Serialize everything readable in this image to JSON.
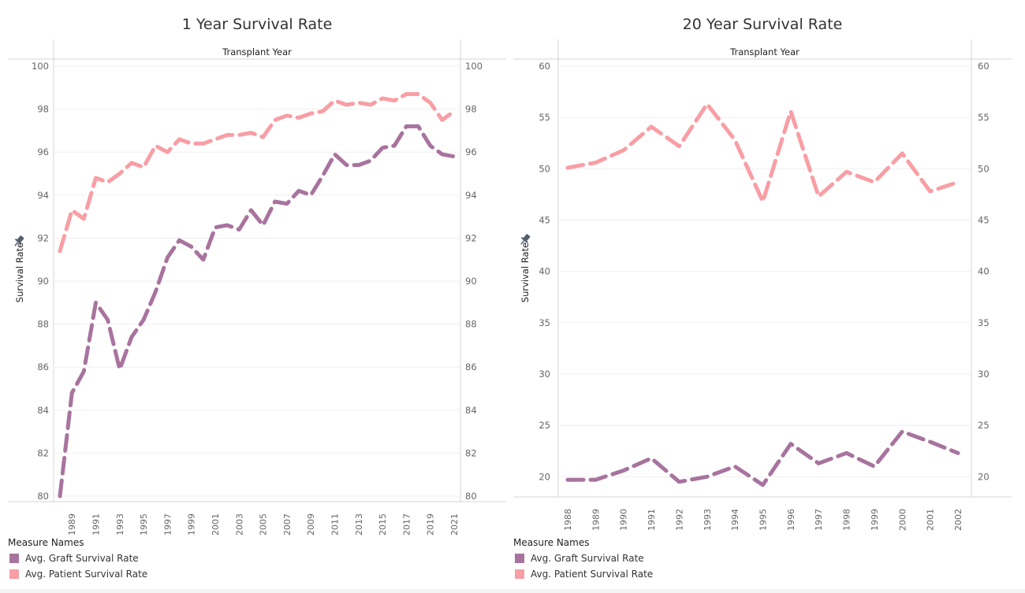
{
  "colors": {
    "graft": "#a8739e",
    "patient": "#f89ea5",
    "pin": "#555f6e"
  },
  "legend": {
    "title": "Measure Names",
    "items": [
      "Avg. Graft Survival Rate",
      "Avg. Patient Survival Rate"
    ]
  },
  "chart_data": [
    {
      "type": "line",
      "title": "1 Year Survival Rate",
      "header": "Transplant Year",
      "ylabel": "Survival Rate",
      "pin_icon": "pin-icon",
      "ylim": [
        80,
        100
      ],
      "yticks": [
        80,
        82,
        84,
        86,
        88,
        90,
        92,
        94,
        96,
        98,
        100
      ],
      "x": [
        1988,
        1989,
        1990,
        1991,
        1992,
        1993,
        1994,
        1995,
        1996,
        1997,
        1998,
        1999,
        2000,
        2001,
        2002,
        2003,
        2004,
        2005,
        2006,
        2007,
        2008,
        2009,
        2010,
        2011,
        2012,
        2013,
        2014,
        2015,
        2016,
        2017,
        2018,
        2019,
        2020,
        2021
      ],
      "xtick_labels": [
        "1989",
        "1991",
        "1993",
        "1995",
        "1997",
        "1999",
        "2001",
        "2003",
        "2005",
        "2007",
        "2009",
        "2011",
        "2013",
        "2015",
        "2017",
        "2019",
        "2021"
      ],
      "series": [
        {
          "name": "Avg. Patient Survival Rate",
          "values": [
            91.4,
            93.3,
            92.9,
            94.8,
            94.6,
            95.0,
            95.5,
            95.3,
            96.3,
            96.0,
            96.6,
            96.4,
            96.4,
            96.6,
            96.8,
            96.8,
            96.9,
            96.7,
            97.5,
            97.7,
            97.6,
            97.8,
            97.9,
            98.4,
            98.2,
            98.3,
            98.2,
            98.5,
            98.4,
            98.7,
            98.7,
            98.3,
            97.5,
            97.9
          ]
        },
        {
          "name": "Avg. Graft Survival Rate",
          "values": [
            80.0,
            84.8,
            85.8,
            89.0,
            88.2,
            85.9,
            87.4,
            88.2,
            89.5,
            91.1,
            91.9,
            91.6,
            91.0,
            92.5,
            92.6,
            92.4,
            93.3,
            92.6,
            93.7,
            93.6,
            94.2,
            94.0,
            94.9,
            95.9,
            95.4,
            95.4,
            95.6,
            96.2,
            96.3,
            97.2,
            97.2,
            96.3,
            95.9,
            95.8
          ]
        }
      ]
    },
    {
      "type": "line",
      "title": "20 Year Survival Rate",
      "header": "Transplant Year",
      "ylabel": "Survival Rate",
      "pin_icon": "pin-icon",
      "ylim": [
        18.03,
        60
      ],
      "yticks": [
        20,
        25,
        30,
        35,
        40,
        45,
        50,
        55,
        60
      ],
      "x": [
        1988,
        1989,
        1990,
        1991,
        1992,
        1993,
        1994,
        1995,
        1996,
        1997,
        1998,
        1999,
        2000,
        2001,
        2002
      ],
      "xtick_labels": [
        "1988",
        "1989",
        "1990",
        "1991",
        "1992",
        "1993",
        "1994",
        "1995",
        "1996",
        "1997",
        "1998",
        "1999",
        "2000",
        "2001",
        "2002"
      ],
      "series": [
        {
          "name": "Avg. Patient Survival Rate",
          "values": [
            50.1,
            50.6,
            51.8,
            54.1,
            52.2,
            56.3,
            52.8,
            46.8,
            55.6,
            47.3,
            49.7,
            48.7,
            51.5,
            47.8,
            48.7
          ]
        },
        {
          "name": "Avg. Graft Survival Rate",
          "values": [
            19.7,
            19.7,
            20.6,
            21.8,
            19.5,
            20.0,
            21.0,
            19.2,
            23.2,
            21.3,
            22.3,
            21.0,
            24.4,
            23.4,
            22.3
          ]
        }
      ]
    }
  ]
}
